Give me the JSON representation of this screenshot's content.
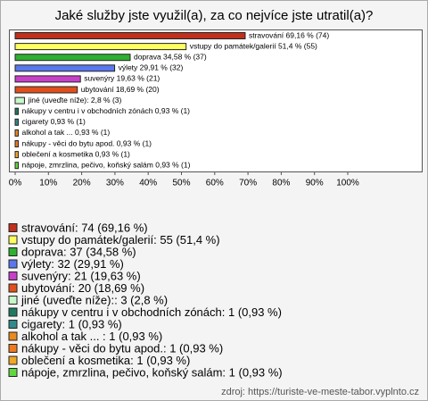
{
  "chart_data": {
    "type": "hbar",
    "title": "Jaké služby jste využil(a), za co nejvíce jste utratil(a)?",
    "categories": [
      "stravování",
      "vstupy do památek/galerií",
      "doprava",
      "výlety",
      "suvenýry",
      "ubytování",
      "jiné (uveďte níže):",
      "nákupy v centru i v obchodních zónách",
      "cigarety",
      "alkohol a tak ... ",
      "nákupy - věci do bytu apod.",
      "oblečení a kosmetika",
      "nápoje, zmrzlina, pečivo, koňský salám"
    ],
    "values": [
      69.16,
      51.4,
      34.58,
      29.91,
      19.63,
      18.69,
      2.8,
      0.93,
      0.93,
      0.93,
      0.93,
      0.93,
      0.93
    ],
    "value_labels": [
      "stravování 69,16 % (74)",
      "vstupy do památek/galerií 51,4 % (55)",
      "doprava 34,58 % (37)",
      "výlety 29,91 % (32)",
      "suvenýry 19,63 % (21)",
      "ubytování 18,69 % (20)",
      "jiné (uveďte níže): 2,8 % (3)",
      "nákupy v centru i v obchodních zónách 0,93 % (1)",
      "cigarety 0,93 % (1)",
      "alkohol a tak ...  0,93 % (1)",
      "nákupy - věci do bytu apod. 0,93 % (1)",
      "oblečení a kosmetika 0,93 % (1)",
      "nápoje, zmrzlina, pečivo, koňský salám 0,93 % (1)"
    ],
    "legend_labels": [
      "stravování: 74 (69,16 %)",
      "vstupy do památek/galerií: 55 (51,4 %)",
      "doprava: 37 (34,58 %)",
      "výlety: 32 (29,91 %)",
      "suvenýry: 21 (19,63 %)",
      "ubytování: 20 (18,69 %)",
      "jiné (uveďte níže):: 3 (2,8 %)",
      "nákupy v centru i v obchodních zónách: 1 (0,93 %)",
      "cigarety: 1 (0,93 %)",
      "alkohol a tak ... : 1 (0,93 %)",
      "nákupy - věci do bytu apod.: 1 (0,93 %)",
      "oblečení a kosmetika: 1 (0,93 %)",
      "nápoje, zmrzlina, pečivo, koňský salám: 1 (0,93 %)"
    ],
    "colors": [
      "#c0301c",
      "#ffff60",
      "#30b030",
      "#5a78ee",
      "#c840c8",
      "#e0501c",
      "#c8f8c8",
      "#207a60",
      "#308a8a",
      "#e88a20",
      "#ee7a20",
      "#f0a828",
      "#60d840"
    ],
    "xlim": [
      0,
      100
    ],
    "xticks": [
      {
        "value": 0,
        "label": "0%"
      },
      {
        "value": 10,
        "label": "10%"
      },
      {
        "value": 20,
        "label": "20%"
      },
      {
        "value": 30,
        "label": "30%"
      },
      {
        "value": 40,
        "label": "40%"
      },
      {
        "value": 50,
        "label": "50%"
      },
      {
        "value": 60,
        "label": "60%"
      },
      {
        "value": 70,
        "label": "70%"
      },
      {
        "value": 80,
        "label": "80%"
      },
      {
        "value": 90,
        "label": "90%"
      },
      {
        "value": 100,
        "label": "100%"
      }
    ],
    "source": "zdroj: https://turiste-ve-meste-tabor.vyplnto.cz"
  }
}
